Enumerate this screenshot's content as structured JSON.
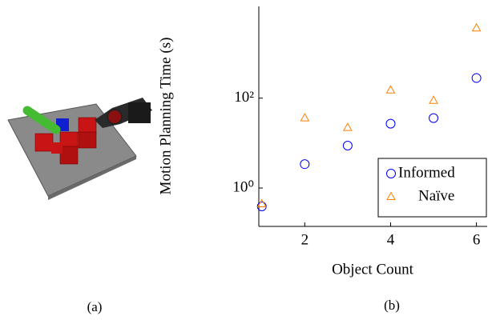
{
  "captions": [
    "(a)",
    "(b)"
  ],
  "chart_data": {
    "type": "scatter",
    "xlabel": "Object Count",
    "ylabel": "Motion Planning Time (s)",
    "xlim": [
      0.93,
      6.25
    ],
    "xticks": [
      2,
      4,
      6
    ],
    "ylim": [
      0.14,
      11000
    ],
    "yscale": "log",
    "yticks": [
      {
        "value": 1,
        "label": "10⁰"
      },
      {
        "value": 100,
        "label": "10²"
      }
    ],
    "legend": "lower right",
    "series": [
      {
        "name": "Informed",
        "color": "#0000ff",
        "marker": "circle",
        "x": [
          1,
          2,
          3,
          4,
          5,
          6
        ],
        "values": [
          0.39,
          3.4,
          8.8,
          27,
          36,
          280
        ]
      },
      {
        "name": "Naïve",
        "color": "#ff8000",
        "marker": "triangle",
        "x": [
          1,
          2,
          3,
          4,
          5,
          6
        ],
        "values": [
          0.44,
          36,
          22,
          150,
          88,
          3600
        ]
      }
    ]
  }
}
